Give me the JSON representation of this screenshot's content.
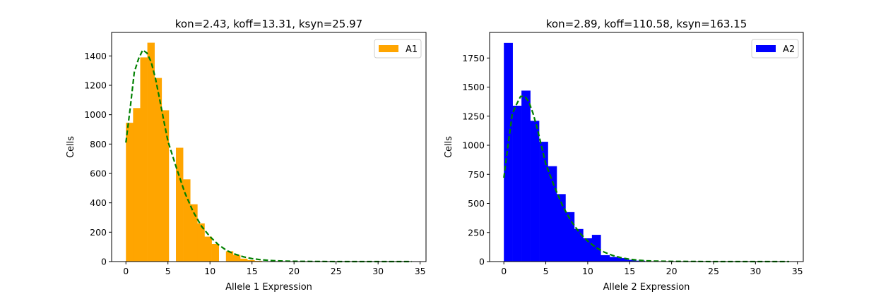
{
  "chart_data": [
    {
      "type": "bar",
      "title": "kon=2.43, koff=13.31, ksyn=25.97",
      "xlabel": "Allele 1 Expression",
      "ylabel": "Cells",
      "xlim": [
        -1.7,
        35.7
      ],
      "ylim": [
        0,
        1560
      ],
      "xticks": [
        0,
        5,
        10,
        15,
        20,
        25,
        30,
        35
      ],
      "yticks": [
        0,
        200,
        400,
        600,
        800,
        1000,
        1200,
        1400
      ],
      "legend": {
        "label": "A1",
        "placement": "top-right"
      },
      "bar_color": "#ffa500",
      "bin_width": 0.85,
      "bin_starts": [
        0,
        0.85,
        1.7,
        2.55,
        3.4,
        4.25,
        5.1,
        5.95,
        6.8,
        7.65,
        8.5,
        9.35,
        10.2,
        11.05,
        11.9,
        12.75,
        13.6,
        14.45,
        15.3,
        16.15
      ],
      "counts": [
        945,
        1045,
        1390,
        1490,
        1250,
        1030,
        0,
        775,
        560,
        390,
        260,
        170,
        120,
        0,
        70,
        45,
        20,
        10,
        5,
        2
      ],
      "fit_color": "#008000",
      "fit_x": [
        0,
        0.5,
        1,
        1.5,
        2,
        2.5,
        3,
        3.5,
        4,
        4.5,
        5,
        6,
        7,
        8,
        9,
        10,
        11,
        12,
        13,
        14,
        15,
        16,
        17,
        18,
        20,
        22,
        25,
        28,
        31,
        34
      ],
      "fit_y": [
        810,
        1040,
        1290,
        1380,
        1440,
        1420,
        1360,
        1250,
        1110,
        960,
        820,
        640,
        470,
        340,
        240,
        170,
        115,
        75,
        50,
        32,
        20,
        13,
        8,
        5,
        2,
        1,
        0,
        0,
        0,
        0
      ]
    },
    {
      "type": "bar",
      "title": "kon=2.89, koff=110.58, ksyn=163.15",
      "xlabel": "Allele 2 Expression",
      "ylabel": "Cells",
      "xlim": [
        -1.7,
        35.7
      ],
      "ylim": [
        0,
        1970
      ],
      "xticks": [
        0,
        5,
        10,
        15,
        20,
        25,
        30,
        35
      ],
      "yticks": [
        0,
        250,
        500,
        750,
        1000,
        1250,
        1500,
        1750
      ],
      "legend": {
        "label": "A2",
        "placement": "top-right"
      },
      "bar_color": "#0000ff",
      "bin_width": 1.05,
      "bin_starts": [
        0,
        1.05,
        2.1,
        3.15,
        4.2,
        5.25,
        6.3,
        7.35,
        8.4,
        9.45,
        10.5,
        11.55,
        12.6,
        13.65,
        14.7,
        15.75,
        16.8
      ],
      "counts": [
        1880,
        1340,
        1470,
        1210,
        1030,
        820,
        580,
        425,
        280,
        200,
        230,
        55,
        40,
        30,
        15,
        8,
        3
      ],
      "fit_color": "#008000",
      "fit_x": [
        0,
        0.5,
        1,
        1.5,
        2,
        2.5,
        3,
        3.5,
        4,
        4.5,
        5,
        6,
        7,
        8,
        9,
        10,
        11,
        12,
        13,
        14,
        15,
        16,
        17,
        18,
        20,
        22,
        25,
        28,
        31,
        34
      ],
      "fit_y": [
        720,
        1000,
        1270,
        1350,
        1420,
        1420,
        1370,
        1270,
        1140,
        990,
        840,
        650,
        480,
        350,
        250,
        175,
        120,
        80,
        52,
        33,
        20,
        12,
        7,
        4,
        2,
        1,
        0,
        0,
        0,
        0
      ]
    }
  ]
}
